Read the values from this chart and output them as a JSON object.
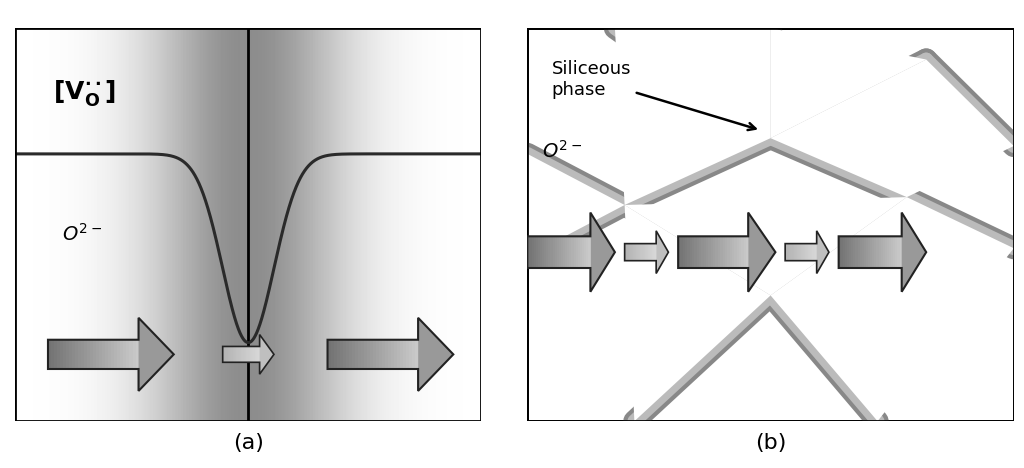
{
  "fig_width": 10.24,
  "fig_height": 4.68,
  "bg_color": "#ffffff",
  "panel_a_label": "(a)",
  "panel_b_label": "(b)",
  "grain_boundary_color": "#aaaaaa",
  "grain_boundary_edge_color": "#777777",
  "curve_color": "#2a2a2a",
  "arrow_fill_color": "#888888",
  "arrow_edge_color": "#222222",
  "annotation_color": "#000000",
  "label_fontsize": 16,
  "vo_fontsize": 18,
  "o2_fontsize": 14,
  "siliceous_fontsize": 13
}
